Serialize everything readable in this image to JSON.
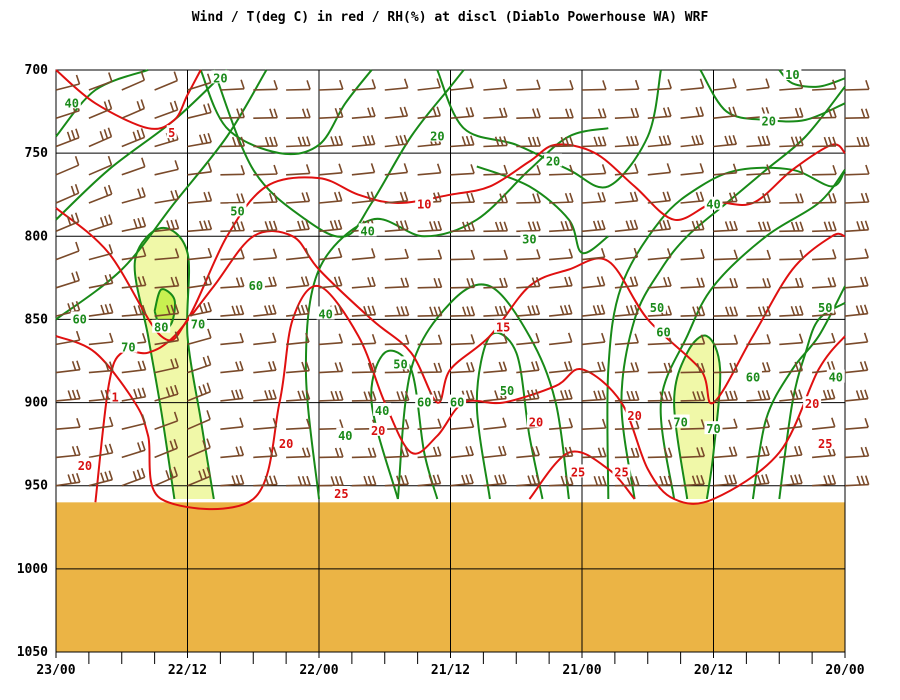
{
  "chart_data": {
    "type": "contour",
    "title": "Wind / T(deg C) in red / RH(%) at discl (Diablo Powerhouse WA)  WRF",
    "x_ticks": [
      "23/00",
      "22/12",
      "22/00",
      "21/12",
      "21/00",
      "20/12",
      "20/00"
    ],
    "y_ticks": [
      700,
      750,
      800,
      850,
      900,
      950,
      1000,
      1050
    ],
    "ylim": [
      700,
      1050
    ],
    "surface_pressure": 960,
    "colors": {
      "rh": "#188a18",
      "temperature": "#e01010",
      "wind": "#7a4a2a",
      "terrain": "#ebb445",
      "rh_fill_70": "#f0f8a8",
      "rh_fill_80": "#c8f050"
    },
    "rh_contours": [
      {
        "level": 40,
        "points": [
          [
            0.0,
            740
          ],
          [
            0.3,
            712
          ],
          [
            0.7,
            700
          ]
        ]
      },
      {
        "level": 50,
        "points": [
          [
            0.0,
            790
          ],
          [
            0.4,
            760
          ],
          [
            0.9,
            730
          ],
          [
            1.3,
            700
          ]
        ]
      },
      {
        "level": 60,
        "points": [
          [
            0.0,
            850
          ],
          [
            0.5,
            820
          ],
          [
            0.9,
            780
          ],
          [
            1.3,
            740
          ],
          [
            1.6,
            700
          ]
        ]
      },
      {
        "level": 70,
        "points": [
          [
            0.9,
            958
          ],
          [
            0.8,
            905
          ],
          [
            0.7,
            860
          ],
          [
            0.6,
            815
          ],
          [
            0.8,
            795
          ],
          [
            1.0,
            810
          ],
          [
            1.0,
            860
          ],
          [
            1.1,
            910
          ],
          [
            1.2,
            958
          ]
        ]
      },
      {
        "level": 80,
        "points": [
          [
            0.75,
            845
          ],
          [
            0.8,
            832
          ],
          [
            0.9,
            838
          ],
          [
            0.88,
            852
          ],
          [
            0.8,
            856
          ],
          [
            0.75,
            845
          ]
        ]
      },
      {
        "level": 20,
        "points": [
          [
            1.1,
            700
          ],
          [
            1.3,
            735
          ],
          [
            1.7,
            750
          ],
          [
            2.0,
            745
          ],
          [
            2.2,
            720
          ],
          [
            2.4,
            700
          ]
        ]
      },
      {
        "level": 50,
        "points": [
          [
            1.2,
            700
          ],
          [
            1.5,
            760
          ],
          [
            1.9,
            790
          ],
          [
            2.2,
            800
          ],
          [
            2.4,
            780
          ],
          [
            2.7,
            740
          ],
          [
            3.0,
            710
          ],
          [
            3.1,
            700
          ]
        ]
      },
      {
        "level": 40,
        "points": [
          [
            2.0,
            958
          ],
          [
            1.9,
            880
          ],
          [
            2.0,
            820
          ],
          [
            2.4,
            790
          ],
          [
            2.8,
            800
          ],
          [
            3.2,
            790
          ],
          [
            3.6,
            760
          ],
          [
            3.9,
            740
          ],
          [
            4.2,
            735
          ]
        ]
      },
      {
        "level": 20,
        "points": [
          [
            2.9,
            700
          ],
          [
            3.1,
            735
          ],
          [
            3.5,
            745
          ],
          [
            3.9,
            760
          ],
          [
            4.2,
            770
          ],
          [
            4.5,
            740
          ],
          [
            4.6,
            700
          ]
        ]
      },
      {
        "level": 30,
        "points": [
          [
            3.2,
            758
          ],
          [
            3.6,
            770
          ],
          [
            3.9,
            790
          ],
          [
            4.0,
            810
          ],
          [
            4.2,
            800
          ]
        ]
      },
      {
        "level": 40,
        "points": [
          [
            2.6,
            958
          ],
          [
            2.4,
            900
          ],
          [
            2.5,
            870
          ],
          [
            2.7,
            880
          ],
          [
            2.8,
            930
          ],
          [
            2.9,
            958
          ]
        ]
      },
      {
        "level": 50,
        "points": [
          [
            2.6,
            958
          ],
          [
            2.7,
            880
          ],
          [
            3.0,
            840
          ],
          [
            3.3,
            830
          ],
          [
            3.6,
            860
          ],
          [
            3.8,
            900
          ],
          [
            3.9,
            958
          ]
        ]
      },
      {
        "level": 60,
        "points": [
          [
            3.3,
            958
          ],
          [
            3.2,
            900
          ],
          [
            3.3,
            860
          ],
          [
            3.5,
            870
          ],
          [
            3.6,
            920
          ],
          [
            3.7,
            958
          ]
        ]
      },
      {
        "level": 50,
        "points": [
          [
            4.4,
            958
          ],
          [
            4.3,
            900
          ],
          [
            4.4,
            850
          ],
          [
            4.6,
            820
          ],
          [
            4.8,
            800
          ],
          [
            5.1,
            780
          ],
          [
            5.4,
            760
          ],
          [
            5.7,
            740
          ],
          [
            6.0,
            710
          ]
        ]
      },
      {
        "level": 40,
        "points": [
          [
            4.2,
            958
          ],
          [
            4.2,
            880
          ],
          [
            4.3,
            830
          ],
          [
            4.6,
            790
          ],
          [
            4.9,
            770
          ],
          [
            5.2,
            760
          ],
          [
            5.6,
            760
          ],
          [
            5.9,
            770
          ],
          [
            6.0,
            760
          ]
        ]
      },
      {
        "level": 60,
        "points": [
          [
            4.7,
            958
          ],
          [
            4.6,
            900
          ],
          [
            4.8,
            860
          ],
          [
            5.0,
            830
          ],
          [
            5.4,
            800
          ],
          [
            5.8,
            780
          ],
          [
            6.0,
            760
          ]
        ]
      },
      {
        "level": 70,
        "points": [
          [
            4.8,
            958
          ],
          [
            4.7,
            900
          ],
          [
            4.8,
            870
          ],
          [
            4.95,
            860
          ],
          [
            5.05,
            880
          ],
          [
            5.0,
            930
          ],
          [
            4.95,
            958
          ]
        ]
      },
      {
        "level": 20,
        "points": [
          [
            4.9,
            700
          ],
          [
            5.1,
            725
          ],
          [
            5.4,
            730
          ],
          [
            5.7,
            730
          ],
          [
            6.0,
            720
          ]
        ]
      },
      {
        "level": 10,
        "points": [
          [
            5.5,
            700
          ],
          [
            5.6,
            708
          ],
          [
            5.8,
            710
          ],
          [
            6.0,
            705
          ]
        ]
      },
      {
        "level": 60,
        "points": [
          [
            5.3,
            958
          ],
          [
            5.4,
            910
          ],
          [
            5.6,
            880
          ],
          [
            5.8,
            860
          ],
          [
            6.0,
            830
          ]
        ]
      },
      {
        "level": 50,
        "points": [
          [
            5.5,
            958
          ],
          [
            5.6,
            900
          ],
          [
            5.7,
            870
          ],
          [
            5.8,
            850
          ],
          [
            6.0,
            840
          ]
        ]
      }
    ],
    "temp_contours": [
      {
        "level": 5,
        "points": [
          [
            0.0,
            700
          ],
          [
            0.3,
            720
          ],
          [
            0.7,
            735
          ],
          [
            0.9,
            730
          ],
          [
            1.0,
            715
          ],
          [
            1.1,
            700
          ]
        ]
      },
      {
        "level": 10,
        "points": [
          [
            0.0,
            783
          ],
          [
            0.4,
            810
          ],
          [
            0.8,
            860
          ],
          [
            1.0,
            850
          ],
          [
            1.3,
            800
          ],
          [
            1.6,
            770
          ],
          [
            2.0,
            765
          ],
          [
            2.3,
            775
          ],
          [
            2.6,
            780
          ],
          [
            3.0,
            775
          ],
          [
            3.3,
            770
          ],
          [
            3.6,
            755
          ],
          [
            3.8,
            745
          ],
          [
            4.1,
            750
          ],
          [
            4.4,
            770
          ],
          [
            4.7,
            790
          ],
          [
            5.0,
            780
          ],
          [
            5.3,
            780
          ],
          [
            5.6,
            760
          ],
          [
            5.9,
            745
          ],
          [
            6.0,
            750
          ]
        ]
      },
      {
        "level": 15,
        "points": [
          [
            0.3,
            960
          ],
          [
            0.4,
            890
          ],
          [
            0.5,
            870
          ],
          [
            0.7,
            870
          ],
          [
            0.9,
            860
          ],
          [
            1.2,
            830
          ],
          [
            1.5,
            800
          ],
          [
            1.8,
            800
          ],
          [
            2.0,
            820
          ],
          [
            2.4,
            850
          ],
          [
            2.7,
            870
          ],
          [
            2.9,
            900
          ],
          [
            3.0,
            880
          ],
          [
            3.3,
            860
          ],
          [
            3.6,
            830
          ],
          [
            3.9,
            820
          ],
          [
            4.2,
            815
          ],
          [
            4.5,
            850
          ],
          [
            4.9,
            880
          ],
          [
            5.0,
            900
          ],
          [
            5.3,
            860
          ],
          [
            5.6,
            820
          ],
          [
            5.9,
            800
          ],
          [
            6.0,
            800
          ]
        ]
      },
      {
        "level": 20,
        "points": [
          [
            0.0,
            860
          ],
          [
            0.3,
            870
          ],
          [
            0.6,
            900
          ],
          [
            0.7,
            920
          ],
          [
            0.8,
            958
          ],
          [
            1.5,
            958
          ],
          [
            1.7,
            900
          ],
          [
            1.8,
            850
          ],
          [
            2.0,
            830
          ],
          [
            2.3,
            860
          ],
          [
            2.5,
            900
          ],
          [
            2.7,
            930
          ],
          [
            2.9,
            920
          ],
          [
            3.1,
            900
          ],
          [
            3.4,
            900
          ],
          [
            3.8,
            890
          ],
          [
            4.0,
            880
          ],
          [
            4.3,
            900
          ],
          [
            4.5,
            940
          ],
          [
            4.7,
            958
          ],
          [
            5.0,
            958
          ],
          [
            5.5,
            930
          ],
          [
            5.8,
            880
          ],
          [
            6.0,
            860
          ]
        ]
      },
      {
        "level": 25,
        "points": [
          [
            3.6,
            958
          ],
          [
            3.9,
            930
          ],
          [
            4.2,
            940
          ],
          [
            4.4,
            958
          ]
        ]
      }
    ],
    "rh_labels": [
      {
        "text": "40",
        "x": 0.12,
        "y": 720
      },
      {
        "text": "20",
        "x": 1.25,
        "y": 705
      },
      {
        "text": "50",
        "x": 1.38,
        "y": 785
      },
      {
        "text": "60",
        "x": 1.52,
        "y": 830
      },
      {
        "text": "70",
        "x": 1.08,
        "y": 853
      },
      {
        "text": "80",
        "x": 0.8,
        "y": 855
      },
      {
        "text": "70",
        "x": 0.55,
        "y": 867
      },
      {
        "text": "60",
        "x": 0.18,
        "y": 850
      },
      {
        "text": "40",
        "x": 2.05,
        "y": 847
      },
      {
        "text": "40",
        "x": 2.37,
        "y": 797
      },
      {
        "text": "20",
        "x": 2.9,
        "y": 740
      },
      {
        "text": "30",
        "x": 3.6,
        "y": 802
      },
      {
        "text": "20",
        "x": 3.78,
        "y": 755
      },
      {
        "text": "50",
        "x": 2.62,
        "y": 877
      },
      {
        "text": "40",
        "x": 2.48,
        "y": 905
      },
      {
        "text": "40",
        "x": 2.2,
        "y": 920
      },
      {
        "text": "60",
        "x": 2.8,
        "y": 900
      },
      {
        "text": "60",
        "x": 3.05,
        "y": 900
      },
      {
        "text": "50",
        "x": 3.43,
        "y": 893
      },
      {
        "text": "50",
        "x": 4.57,
        "y": 843
      },
      {
        "text": "60",
        "x": 4.62,
        "y": 858
      },
      {
        "text": "70",
        "x": 4.75,
        "y": 912
      },
      {
        "text": "70",
        "x": 5.0,
        "y": 916
      },
      {
        "text": "60",
        "x": 5.3,
        "y": 885
      },
      {
        "text": "40",
        "x": 5.0,
        "y": 781
      },
      {
        "text": "20",
        "x": 5.42,
        "y": 731
      },
      {
        "text": "10",
        "x": 5.6,
        "y": 703
      },
      {
        "text": "50",
        "x": 5.85,
        "y": 843
      },
      {
        "text": "40",
        "x": 5.93,
        "y": 885
      }
    ],
    "temp_labels": [
      {
        "text": "5",
        "x": 0.88,
        "y": 738
      },
      {
        "text": "10",
        "x": 2.8,
        "y": 781
      },
      {
        "text": "15",
        "x": 3.4,
        "y": 855
      },
      {
        "text": "20",
        "x": 1.75,
        "y": 925
      },
      {
        "text": "20",
        "x": 2.45,
        "y": 917
      },
      {
        "text": "20",
        "x": 3.65,
        "y": 912
      },
      {
        "text": "20",
        "x": 4.4,
        "y": 908
      },
      {
        "text": "20",
        "x": 5.75,
        "y": 901
      },
      {
        "text": "20",
        "x": 0.22,
        "y": 938
      },
      {
        "text": "1",
        "x": 0.45,
        "y": 897
      },
      {
        "text": "25",
        "x": 2.17,
        "y": 955
      },
      {
        "text": "25",
        "x": 3.97,
        "y": 942
      },
      {
        "text": "25",
        "x": 4.3,
        "y": 942
      },
      {
        "text": "25",
        "x": 5.85,
        "y": 925
      }
    ]
  }
}
